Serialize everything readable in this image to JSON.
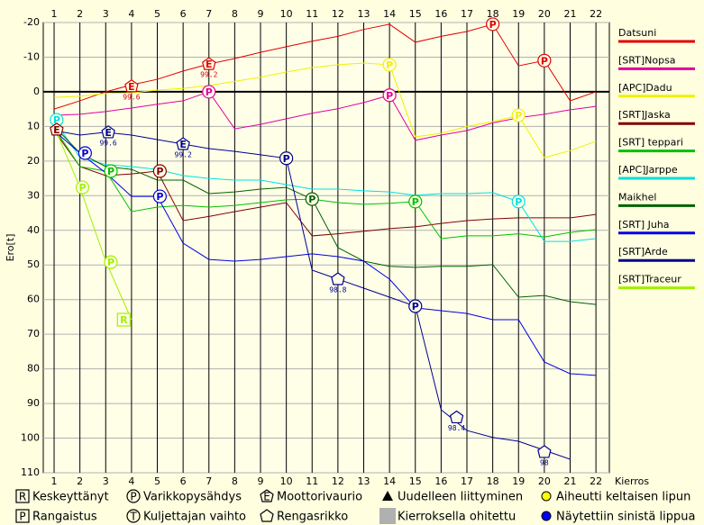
{
  "chart_data": {
    "type": "line",
    "y_label": "Ero[t]",
    "x_label": "Kierros",
    "x": [
      1,
      2,
      3,
      4,
      5,
      6,
      7,
      8,
      9,
      10,
      11,
      12,
      13,
      14,
      15,
      16,
      17,
      18,
      19,
      20,
      21,
      22
    ],
    "xlim": [
      0.58,
      22.52
    ],
    "xticks": [
      1,
      2,
      3,
      4,
      5,
      6,
      7,
      8,
      9,
      10,
      11,
      12,
      13,
      14,
      15,
      16,
      17,
      18,
      19,
      20,
      21,
      22
    ],
    "ylim": [
      -20,
      110
    ],
    "yticks": [
      -20,
      -10,
      0,
      10,
      20,
      30,
      40,
      50,
      60,
      70,
      80,
      90,
      100,
      110
    ],
    "y_inverted": true,
    "grid": true,
    "series": [
      {
        "name": "Datsuni",
        "color": "#e00000",
        "values": [
          5,
          2.6,
          0,
          -2,
          -3.6,
          -6,
          -8,
          -9.6,
          -11.4,
          -13,
          -14.6,
          -16,
          -18,
          -19.5,
          -14.3,
          -16,
          -17.4,
          -19.5,
          -7.5,
          -9,
          2.6,
          0
        ]
      },
      {
        "name": "[SRT]Nopsa",
        "color": "#e000a0",
        "values": [
          6.8,
          6.5,
          5.7,
          4.7,
          3.6,
          2.6,
          0,
          10.7,
          9.4,
          7.8,
          6.2,
          4.9,
          3.1,
          1,
          14,
          12.5,
          11.2,
          9,
          7.5,
          6.5,
          5.2,
          4.2
        ]
      },
      {
        "name": "[APC]Dadu",
        "color": "#f0f000",
        "values": [
          1.6,
          1.3,
          0.5,
          0.3,
          -0.5,
          -1,
          -1.8,
          -3,
          -4.2,
          -5.7,
          -7,
          -7.8,
          -8.3,
          -7.8,
          13,
          12,
          10,
          8.6,
          6.8,
          19,
          17,
          14.3
        ]
      },
      {
        "name": "[SRT]Jaska",
        "color": "#800000",
        "values": [
          11.2,
          21.6,
          24.2,
          23.7,
          22.9,
          37.2,
          36,
          34.6,
          33.3,
          32,
          41.6,
          41,
          40.3,
          39.5,
          39,
          38,
          37.2,
          36.7,
          36.4,
          36.4,
          36.4,
          35.4
        ]
      },
      {
        "name": "[SRT] teppari",
        "color": "#00c000",
        "values": [
          10.4,
          21.6,
          22.9,
          34.6,
          33.3,
          32.8,
          33.3,
          32.8,
          32,
          31.2,
          31,
          32,
          32.5,
          32.2,
          31.7,
          42.4,
          41.6,
          41.6,
          41,
          41.9,
          40.6,
          39.8
        ]
      },
      {
        "name": "[APC]Jarppe",
        "color": "#00e0e0",
        "values": [
          8.1,
          19,
          21,
          21.6,
          22.4,
          24.2,
          25,
          25.5,
          25.5,
          26.8,
          28.1,
          28.1,
          28.6,
          28.9,
          29.9,
          29.4,
          29.4,
          29.1,
          31.7,
          43.2,
          43.2,
          42.4
        ]
      },
      {
        "name": "Maikhel",
        "color": "#006000",
        "values": [
          9.9,
          17.7,
          21.6,
          22.4,
          25.5,
          25.5,
          29.4,
          28.9,
          28.1,
          27.6,
          31,
          45,
          48.9,
          50.4,
          50.7,
          50.4,
          50.4,
          49.9,
          59.3,
          58.8,
          60.6,
          61.4
        ]
      },
      {
        "name": "[SRT] Juha",
        "color": "#0000e0",
        "values": [
          11.2,
          17.7,
          23.4,
          30.2,
          30.2,
          43.7,
          48.4,
          48.9,
          48.4,
          47.6,
          46.8,
          47.6,
          48.9,
          54.1,
          62.4,
          63.2,
          64,
          65.8,
          65.8,
          78,
          81.4,
          81.9
        ]
      },
      {
        "name": "[SRT]Arde",
        "color": "#000090",
        "values": [
          11.2,
          12.5,
          11.7,
          12.5,
          13.8,
          15.1,
          16.4,
          17.2,
          18.2,
          19.2,
          51.5,
          54.1,
          56.7,
          59.3,
          61.9,
          91.8,
          97.8,
          99.8,
          100.9,
          103.5,
          106.1,
          null
        ]
      },
      {
        "name": "[SRT]Traceur",
        "color": "#a0f000",
        "values": [
          9.9,
          27.6,
          48.9,
          65.8,
          null,
          null,
          null,
          null,
          null,
          null,
          null,
          null,
          null,
          null,
          null,
          null,
          null,
          null,
          null,
          null,
          null,
          null
        ]
      }
    ],
    "events": [
      {
        "series": 0,
        "x": 4,
        "y": -1.6,
        "shape": "pentagon",
        "symbol": "E",
        "label": "99.6"
      },
      {
        "series": 0,
        "x": 7,
        "y": -8,
        "shape": "pentagon",
        "symbol": "E",
        "label": "99.2"
      },
      {
        "series": 0,
        "x": 18,
        "y": -19.5,
        "shape": "circle",
        "symbol": "P"
      },
      {
        "series": 0,
        "x": 20,
        "y": -9,
        "shape": "circle",
        "symbol": "P"
      },
      {
        "series": 1,
        "x": 7,
        "y": 0,
        "shape": "circle",
        "symbol": "P"
      },
      {
        "series": 1,
        "x": 14,
        "y": 1,
        "shape": "circle",
        "symbol": "P"
      },
      {
        "series": 2,
        "x": 14,
        "y": -7.8,
        "shape": "circle",
        "symbol": "P"
      },
      {
        "series": 2,
        "x": 19,
        "y": 6.8,
        "shape": "circle",
        "symbol": "P"
      },
      {
        "series": 5,
        "x": 1.1,
        "y": 8.1,
        "shape": "circle",
        "symbol": "P"
      },
      {
        "series": 3,
        "x": 1.1,
        "y": 10.9,
        "shape": "pentagon",
        "symbol": "E"
      },
      {
        "series": 8,
        "x": 3.1,
        "y": 11.7,
        "shape": "pentagon",
        "symbol": "E",
        "label": "99.6"
      },
      {
        "series": 8,
        "x": 6,
        "y": 15.1,
        "shape": "pentagon",
        "symbol": "E",
        "label": "99.2"
      },
      {
        "series": 8,
        "x": 10,
        "y": 19.2,
        "shape": "circle",
        "symbol": "P"
      },
      {
        "series": 8,
        "x": 12,
        "y": 54.1,
        "shape": "pentagon",
        "label": "98.8"
      },
      {
        "series": 8,
        "x": 15,
        "y": 61.9,
        "shape": "circle",
        "symbol": "P"
      },
      {
        "series": 8,
        "x": 16.6,
        "y": 94,
        "shape": "pentagon",
        "label": "98.4"
      },
      {
        "series": 8,
        "x": 20,
        "y": 104,
        "shape": "pentagon",
        "label": "98"
      },
      {
        "series": 7,
        "x": 2.2,
        "y": 17.7,
        "shape": "circle",
        "symbol": "P"
      },
      {
        "series": 7,
        "x": 5.1,
        "y": 30.2,
        "shape": "circle",
        "symbol": "P"
      },
      {
        "series": 3,
        "x": 5.1,
        "y": 22.9,
        "shape": "circle",
        "symbol": "P"
      },
      {
        "series": 4,
        "x": 3.2,
        "y": 22.9,
        "shape": "circle",
        "symbol": "P"
      },
      {
        "series": 6,
        "x": 11,
        "y": 31,
        "shape": "circle",
        "symbol": "P"
      },
      {
        "series": 4,
        "x": 15,
        "y": 31.7,
        "shape": "circle",
        "symbol": "P"
      },
      {
        "series": 5,
        "x": 19,
        "y": 31.7,
        "shape": "circle",
        "symbol": "P"
      },
      {
        "series": 9,
        "x": 2.1,
        "y": 27.6,
        "shape": "circle",
        "symbol": "P"
      },
      {
        "series": 9,
        "x": 3.2,
        "y": 49.2,
        "shape": "circle",
        "symbol": "P"
      },
      {
        "series": 9,
        "x": 3.7,
        "y": 65.8,
        "shape": "square",
        "symbol": "R"
      }
    ],
    "symbol_legend": [
      {
        "shape": "square",
        "symbol": "R",
        "label": "Keskeyttänyt"
      },
      {
        "shape": "square",
        "symbol": "P",
        "label": "Rangaistus"
      },
      {
        "shape": "circle",
        "symbol": "P",
        "label": "Varikkopysähdys"
      },
      {
        "shape": "circle",
        "symbol": "T",
        "label": "Kuljettajan vaihto"
      },
      {
        "shape": "pentagon",
        "symbol": "E",
        "label": "Moottorivaurio"
      },
      {
        "shape": "pentagon",
        "label": "Rengasrikko"
      },
      {
        "shape": "triangle",
        "label": "Uudelleen liittyminen"
      },
      {
        "shape": "block",
        "label": "Kierroksella ohitettu"
      },
      {
        "shape": "dot",
        "color": "#ffff00",
        "label": "Aiheutti keltaisen lipun"
      },
      {
        "shape": "dot",
        "color": "#0000ff",
        "label": "Näytettiin sinistä lippua"
      }
    ]
  }
}
